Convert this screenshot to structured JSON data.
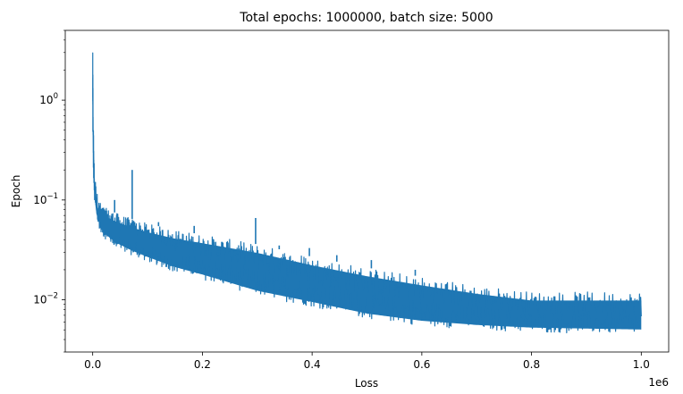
{
  "chart_data": {
    "type": "line",
    "title": "Total epochs: 1000000, batch size: 5000",
    "xlabel": "Loss",
    "ylabel": "Epoch",
    "x_offset_label": "1e6",
    "yscale": "log",
    "xlim": [
      -50000,
      1050000
    ],
    "ylim": [
      0.003,
      5
    ],
    "grid": false,
    "x_ticks": [
      {
        "value": 0.0,
        "label": "0.0"
      },
      {
        "value": 200000,
        "label": "0.2"
      },
      {
        "value": 400000,
        "label": "0.4"
      },
      {
        "value": 600000,
        "label": "0.6"
      },
      {
        "value": 800000,
        "label": "0.8"
      },
      {
        "value": 1000000,
        "label": "1.0"
      }
    ],
    "y_ticks": [
      {
        "value": 0.01,
        "base": "10",
        "exp": "−2"
      },
      {
        "value": 0.1,
        "base": "10",
        "exp": "−1"
      },
      {
        "value": 1,
        "base": "10",
        "exp": "0"
      }
    ],
    "series": [
      {
        "color": "#1f77b4",
        "x": [
          0,
          1000,
          3000,
          6000,
          10000,
          20000,
          40000,
          70000,
          100000,
          150000,
          200000,
          300000,
          400000,
          500000,
          600000,
          700000,
          800000,
          900000,
          1000000
        ],
        "y_low": [
          0.55,
          0.2,
          0.1,
          0.07,
          0.055,
          0.042,
          0.034,
          0.028,
          0.024,
          0.019,
          0.016,
          0.011,
          0.0085,
          0.0065,
          0.0055,
          0.005,
          0.0047,
          0.0046,
          0.0045
        ],
        "y_high": [
          3.5,
          0.7,
          0.2,
          0.14,
          0.1,
          0.085,
          0.075,
          0.065,
          0.058,
          0.05,
          0.045,
          0.036,
          0.027,
          0.021,
          0.017,
          0.014,
          0.012,
          0.012,
          0.012
        ],
        "spikes": [
          {
            "x": 40000,
            "y": 0.1
          },
          {
            "x": 72000,
            "y": 0.2
          },
          {
            "x": 120000,
            "y": 0.06
          },
          {
            "x": 185000,
            "y": 0.055
          },
          {
            "x": 297000,
            "y": 0.066
          },
          {
            "x": 340000,
            "y": 0.035
          },
          {
            "x": 395000,
            "y": 0.033
          },
          {
            "x": 445000,
            "y": 0.028
          },
          {
            "x": 508000,
            "y": 0.025
          },
          {
            "x": 588000,
            "y": 0.02
          }
        ]
      }
    ]
  }
}
